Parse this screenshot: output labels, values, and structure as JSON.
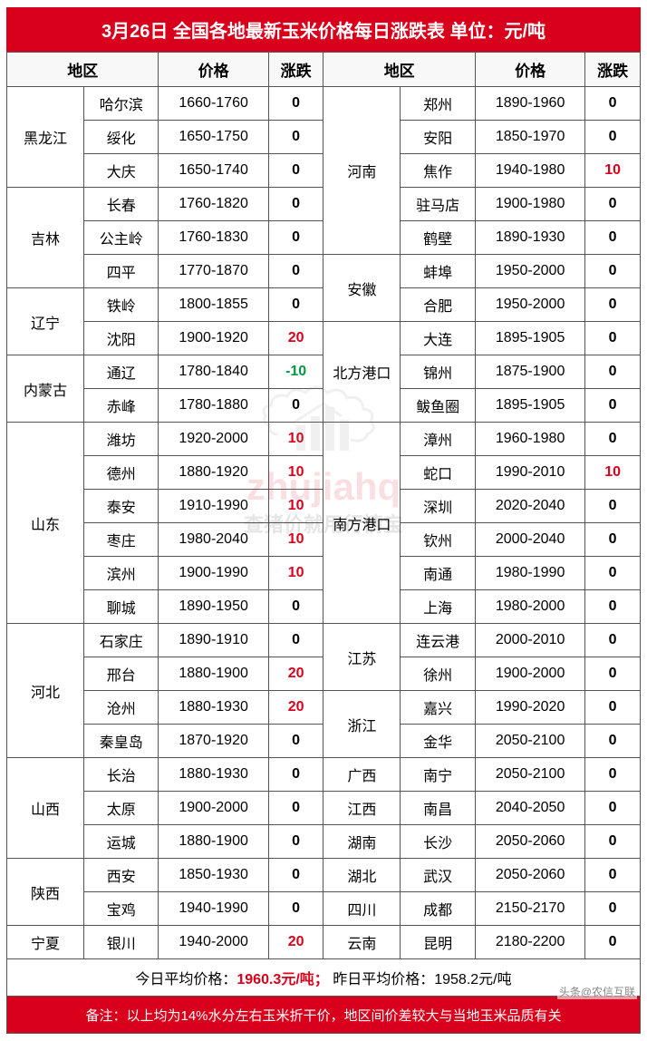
{
  "title": "3月26日 全国各地最新玉米价格每日涨跌表  单位：元/吨",
  "headers": {
    "region": "地区",
    "price": "价格",
    "change": "涨跌"
  },
  "left": [
    {
      "province": "黑龙江",
      "rows": [
        {
          "city": "哈尔滨",
          "price": "1660-1760",
          "change": 0
        },
        {
          "city": "绥化",
          "price": "1650-1750",
          "change": 0
        },
        {
          "city": "大庆",
          "price": "1650-1740",
          "change": 0
        }
      ]
    },
    {
      "province": "吉林",
      "rows": [
        {
          "city": "长春",
          "price": "1760-1820",
          "change": 0
        },
        {
          "city": "公主岭",
          "price": "1760-1830",
          "change": 0
        },
        {
          "city": "四平",
          "price": "1770-1870",
          "change": 0
        }
      ]
    },
    {
      "province": "辽宁",
      "rows": [
        {
          "city": "铁岭",
          "price": "1800-1855",
          "change": 0
        },
        {
          "city": "沈阳",
          "price": "1900-1920",
          "change": 20
        }
      ]
    },
    {
      "province": "内蒙古",
      "rows": [
        {
          "city": "通辽",
          "price": "1780-1840",
          "change": -10
        },
        {
          "city": "赤峰",
          "price": "1780-1880",
          "change": 0
        }
      ]
    },
    {
      "province": "山东",
      "rows": [
        {
          "city": "潍坊",
          "price": "1920-2000",
          "change": 10
        },
        {
          "city": "德州",
          "price": "1880-1920",
          "change": 10
        },
        {
          "city": "泰安",
          "price": "1910-1990",
          "change": 10
        },
        {
          "city": "枣庄",
          "price": "1980-2040",
          "change": 10
        },
        {
          "city": "滨州",
          "price": "1900-1990",
          "change": 10
        },
        {
          "city": "聊城",
          "price": "1890-1950",
          "change": 0
        }
      ]
    },
    {
      "province": "河北",
      "rows": [
        {
          "city": "石家庄",
          "price": "1890-1910",
          "change": 0
        },
        {
          "city": "邢台",
          "price": "1880-1900",
          "change": 20
        },
        {
          "city": "沧州",
          "price": "1880-1930",
          "change": 20
        },
        {
          "city": "秦皇岛",
          "price": "1870-1920",
          "change": 0
        }
      ]
    },
    {
      "province": "山西",
      "rows": [
        {
          "city": "长治",
          "price": "1880-1930",
          "change": 0
        },
        {
          "city": "太原",
          "price": "1900-2000",
          "change": 0
        },
        {
          "city": "运城",
          "price": "1880-1900",
          "change": 0
        }
      ]
    },
    {
      "province": "陕西",
      "rows": [
        {
          "city": "西安",
          "price": "1850-1930",
          "change": 0
        },
        {
          "city": "宝鸡",
          "price": "1940-1990",
          "change": 0
        }
      ]
    },
    {
      "province": "宁夏",
      "rows": [
        {
          "city": "银川",
          "price": "1940-2000",
          "change": 20
        }
      ]
    }
  ],
  "right": [
    {
      "province": "河南",
      "rows": [
        {
          "city": "郑州",
          "price": "1890-1960",
          "change": 0
        },
        {
          "city": "安阳",
          "price": "1850-1970",
          "change": 0
        },
        {
          "city": "焦作",
          "price": "1940-1980",
          "change": 10
        },
        {
          "city": "驻马店",
          "price": "1900-1980",
          "change": 0
        },
        {
          "city": "鹤壁",
          "price": "1890-1930",
          "change": 0
        }
      ]
    },
    {
      "province": "安徽",
      "rows": [
        {
          "city": "蚌埠",
          "price": "1950-2000",
          "change": 0
        },
        {
          "city": "合肥",
          "price": "1950-2000",
          "change": 0
        }
      ]
    },
    {
      "province": "北方港口",
      "rows": [
        {
          "city": "大连",
          "price": "1895-1905",
          "change": 0
        },
        {
          "city": "锦州",
          "price": "1875-1900",
          "change": 0
        },
        {
          "city": "鲅鱼圈",
          "price": "1895-1905",
          "change": 0
        }
      ]
    },
    {
      "province": "南方港口",
      "rows": [
        {
          "city": "漳州",
          "price": "1960-1980",
          "change": 0
        },
        {
          "city": "蛇口",
          "price": "1990-2010",
          "change": 10
        },
        {
          "city": "深圳",
          "price": "2020-2040",
          "change": 0
        },
        {
          "city": "钦州",
          "price": "2000-2040",
          "change": 0
        },
        {
          "city": "南通",
          "price": "1980-1990",
          "change": 0
        },
        {
          "city": "上海",
          "price": "1980-2000",
          "change": 0
        }
      ]
    },
    {
      "province": "江苏",
      "rows": [
        {
          "city": "连云港",
          "price": "2000-2010",
          "change": 0
        },
        {
          "city": "徐州",
          "price": "1900-2000",
          "change": 0
        }
      ]
    },
    {
      "province": "浙江",
      "rows": [
        {
          "city": "嘉兴",
          "price": "1990-2020",
          "change": 0
        },
        {
          "city": "金华",
          "price": "2050-2100",
          "change": 0
        }
      ]
    },
    {
      "province": "广西",
      "rows": [
        {
          "city": "南宁",
          "price": "2050-2100",
          "change": 0
        }
      ]
    },
    {
      "province": "江西",
      "rows": [
        {
          "city": "南昌",
          "price": "2040-2050",
          "change": 0
        }
      ]
    },
    {
      "province": "湖南",
      "rows": [
        {
          "city": "长沙",
          "price": "2050-2060",
          "change": 0
        }
      ]
    },
    {
      "province": "湖北",
      "rows": [
        {
          "city": "武汉",
          "price": "2050-2060",
          "change": 0
        }
      ]
    },
    {
      "province": "四川",
      "rows": [
        {
          "city": "成都",
          "price": "2150-2170",
          "change": 0
        }
      ]
    },
    {
      "province": "云南",
      "rows": [
        {
          "city": "昆明",
          "price": "2180-2200",
          "change": 0
        }
      ]
    }
  ],
  "footer": {
    "today_label": "今日平均价格：",
    "today_value": "1960.3元/吨；",
    "yesterday_label": "昨日平均价格：",
    "yesterday_value": "1958.2元/吨",
    "note": "备注：以上均为14%水分左右玉米折干价，地区间价差较大与当地玉米品质有关"
  },
  "source": "头条@农信互联",
  "watermark": {
    "brand": "zhujiahq",
    "sub": "查猪价就用行情宝"
  },
  "colors": {
    "primary": "#d9001b",
    "down": "#009944",
    "border": "#555555",
    "bg": "#ffffff"
  }
}
